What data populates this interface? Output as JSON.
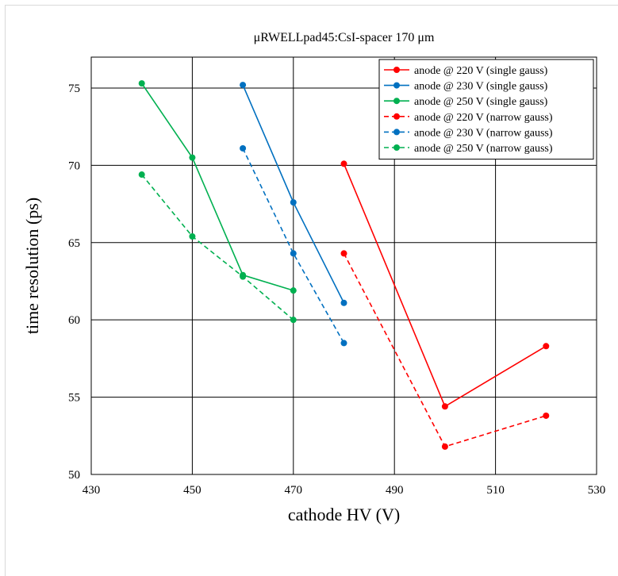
{
  "chart_data": {
    "type": "line",
    "title": "μRWELLpad45:CsI-spacer 170 μm",
    "xlabel": "cathode HV (V)",
    "ylabel": "time resolution (ps)",
    "xlim": [
      430,
      530
    ],
    "ylim": [
      50,
      77
    ],
    "xticks": [
      430,
      450,
      470,
      490,
      510,
      530
    ],
    "yticks": [
      50,
      55,
      60,
      65,
      70,
      75
    ],
    "grid": true,
    "legend_position": "top-right",
    "series": [
      {
        "name": "anode @ 220 V (single gauss)",
        "color": "#ff0000",
        "dash": "solid",
        "x": [
          480,
          500,
          520
        ],
        "y": [
          70.1,
          54.4,
          58.3
        ]
      },
      {
        "name": "anode @ 230 V (single gauss)",
        "color": "#0070c0",
        "dash": "solid",
        "x": [
          460,
          470,
          480
        ],
        "y": [
          75.2,
          67.6,
          61.1
        ]
      },
      {
        "name": "anode @ 250 V (single gauss)",
        "color": "#00b050",
        "dash": "solid",
        "x": [
          440,
          450,
          460,
          470
        ],
        "y": [
          75.3,
          70.5,
          62.9,
          61.9
        ]
      },
      {
        "name": "anode @ 220 V (narrow gauss)",
        "color": "#ff0000",
        "dash": "dashed",
        "x": [
          480,
          500,
          520
        ],
        "y": [
          64.3,
          51.8,
          53.8
        ]
      },
      {
        "name": "anode @ 230 V (narrow gauss)",
        "color": "#0070c0",
        "dash": "dashed",
        "x": [
          460,
          470,
          480
        ],
        "y": [
          71.1,
          64.3,
          58.5
        ]
      },
      {
        "name": "anode @ 250 V (narrow gauss)",
        "color": "#00b050",
        "dash": "dashed",
        "x": [
          440,
          450,
          460,
          470
        ],
        "y": [
          69.4,
          65.4,
          62.8,
          60.0
        ]
      }
    ]
  }
}
